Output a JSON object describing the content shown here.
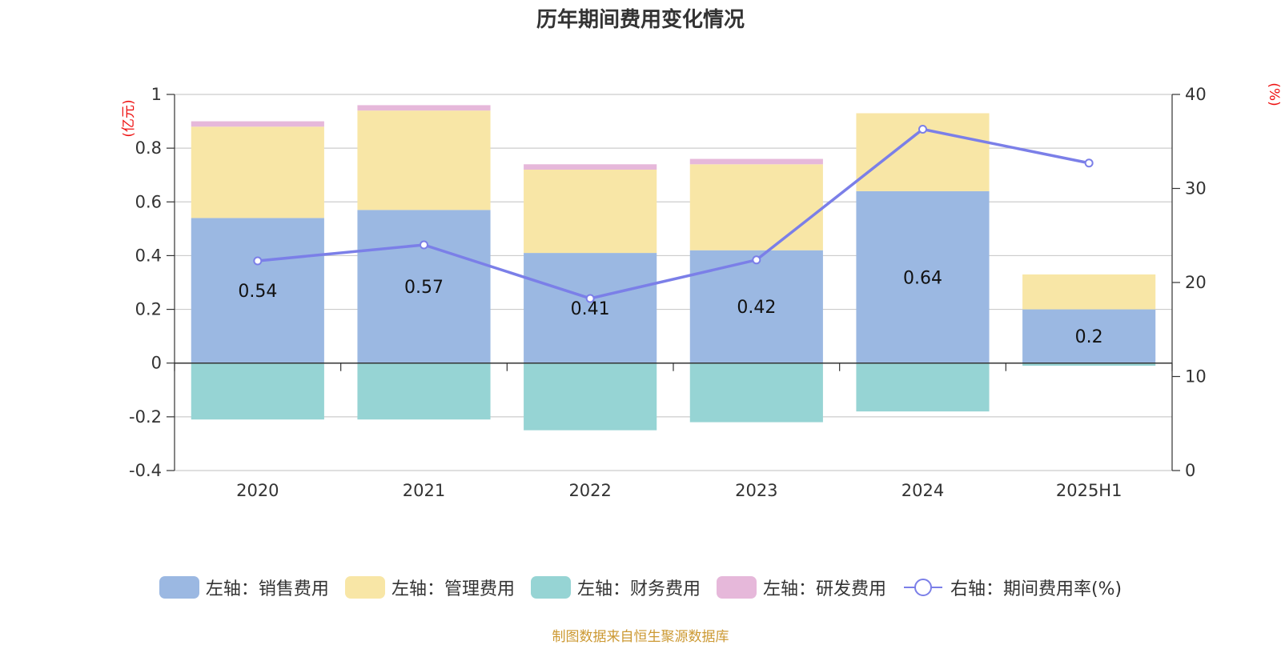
{
  "chart_data": {
    "type": "bar",
    "title": "历年期间费用变化情况",
    "categories": [
      "2020",
      "2021",
      "2022",
      "2023",
      "2024",
      "2025H1"
    ],
    "left_axis": {
      "unit": "(亿元)",
      "ylim": [
        -0.4,
        1
      ],
      "ticks": [
        "1",
        "0.8",
        "0.6",
        "0.4",
        "0.2",
        "0",
        "-0.2",
        "-0.4"
      ]
    },
    "right_axis": {
      "unit": "(%)",
      "ylim": [
        0,
        40
      ],
      "ticks": [
        "40",
        "30",
        "20",
        "10",
        "0"
      ]
    },
    "series": [
      {
        "name": "左轴：销售费用",
        "type": "bar",
        "axis": "left",
        "color": "#9bb8e2",
        "values": [
          0.54,
          0.57,
          0.41,
          0.42,
          0.64,
          0.2
        ],
        "labels": [
          "0.54",
          "0.57",
          "0.41",
          "0.42",
          "0.64",
          "0.2"
        ]
      },
      {
        "name": "左轴：管理费用",
        "type": "bar",
        "axis": "left",
        "color": "#f8e6a6",
        "values": [
          0.34,
          0.37,
          0.31,
          0.32,
          0.29,
          0.13
        ]
      },
      {
        "name": "左轴：财务费用",
        "type": "bar",
        "axis": "left",
        "color": "#96d4d4",
        "values": [
          -0.21,
          -0.21,
          -0.25,
          -0.22,
          -0.18,
          -0.01
        ]
      },
      {
        "name": "左轴：研发费用",
        "type": "bar",
        "axis": "left",
        "color": "#e6b8da",
        "values": [
          0.02,
          0.02,
          0.02,
          0.02,
          0,
          0
        ]
      },
      {
        "name": "右轴：期间费用率(%)",
        "type": "line",
        "axis": "right",
        "color": "#7b7fe8",
        "values": [
          22.3,
          24.0,
          18.3,
          22.4,
          36.3,
          32.7
        ]
      }
    ],
    "legend_position": "bottom",
    "grid": true
  },
  "source_note": "制图数据来自恒生聚源数据库"
}
